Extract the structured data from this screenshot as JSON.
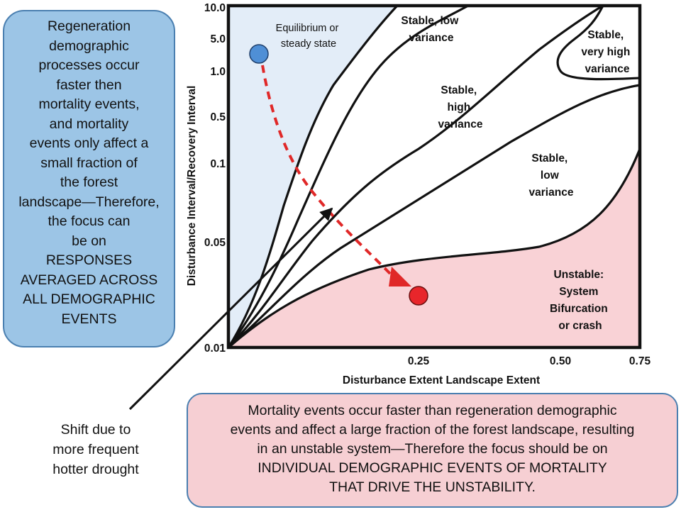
{
  "left_box": {
    "lines": [
      "Regeneration",
      "demographic",
      "processes occur",
      "faster then",
      "mortality events,",
      "and mortality",
      "events only affect a",
      "small fraction of",
      "the forest",
      "landscape—Therefore,",
      "the focus can",
      "be on",
      "RESPONSES",
      "AVERAGED ACROSS",
      "ALL DEMOGRAPHIC",
      "EVENTS"
    ]
  },
  "bottom_box": {
    "lines": [
      "Mortality events occur faster than regeneration demographic",
      "events and affect a large fraction of the forest landscape, resulting",
      "in an unstable system—Therefore the focus should be on",
      "INDIVIDUAL DEMOGRAPHIC EVENTS OF MORTALITY",
      "THAT DRIVE THE UNSTABILITY."
    ]
  },
  "shift_note": {
    "lines": [
      "Shift due to",
      "more frequent",
      "hotter drought"
    ]
  },
  "chart": {
    "y_axis_title": "Disturbance Interval/Recovery Interval",
    "x_axis_title": "Disturbance Extent Landscape Extent",
    "y_ticks": [
      "10.0",
      "5.0",
      "1.0",
      "0.5",
      "0.1",
      "0.05",
      "0.01"
    ],
    "x_ticks": [
      "0.25",
      "0.50",
      "0.75"
    ],
    "regions": {
      "equilibrium": [
        "Equilibrium or",
        "steady state"
      ],
      "stable_low_top": [
        "Stable, low",
        "variance"
      ],
      "stable_very_high": [
        "Stable,",
        "very high",
        "variance"
      ],
      "stable_high": [
        "Stable,",
        "high",
        "variance"
      ],
      "stable_low_mid": [
        "Stable,",
        "low",
        "variance"
      ],
      "unstable": [
        "Unstable:",
        "System",
        "Bifurcation",
        "or crash"
      ]
    }
  },
  "colors": {
    "equilibrium_fill": "#e3edf8",
    "unstable_fill": "#f9d2d6",
    "start_point": "#4f8fd6",
    "end_point": "#e8262b",
    "trajectory": "#e02828",
    "left_box_fill": "#9cc5e6",
    "bottom_box_fill": "#f6cfd3"
  }
}
